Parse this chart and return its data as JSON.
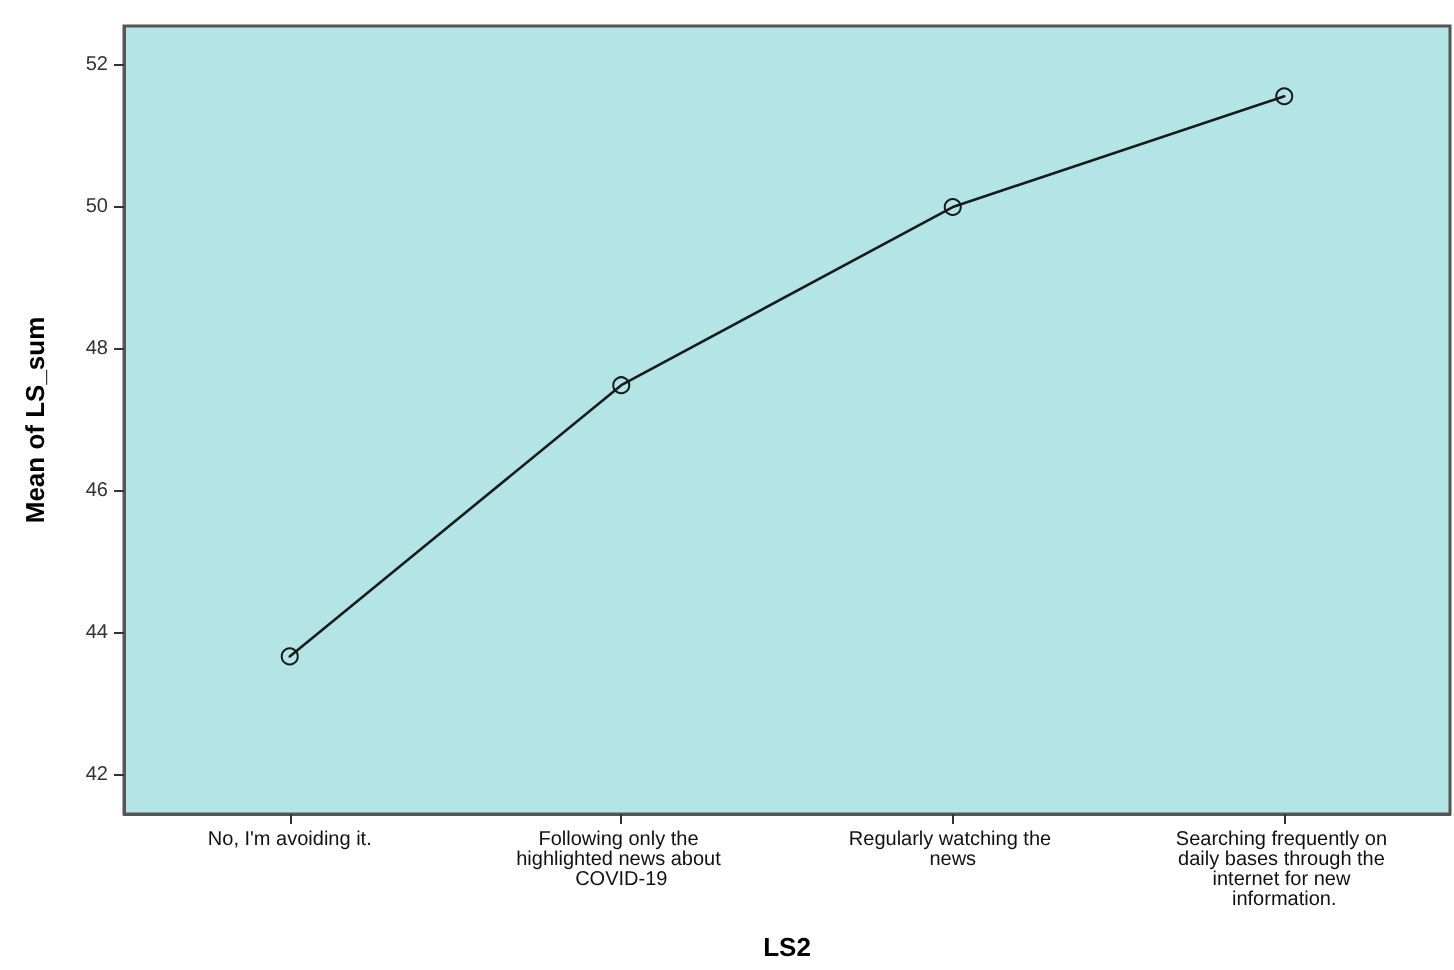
{
  "chart_data": {
    "type": "line",
    "xlabel": "LS2",
    "ylabel": "Mean of LS_sum",
    "categories": [
      "No, I'm avoiding it.",
      "Following only the highlighted news about COVID-19",
      "Regularly watching the news",
      "Searching frequently on daily bases through the internet for new information."
    ],
    "series": [
      {
        "color": "#1a1a1a",
        "values": [
          43.67,
          47.49,
          50.0,
          51.56
        ]
      }
    ],
    "ylim": [
      41.45,
      52.55
    ],
    "yticks": [
      42,
      44,
      46,
      48,
      50,
      52
    ],
    "grid": false,
    "marker": "circle",
    "line_style": "solid"
  }
}
